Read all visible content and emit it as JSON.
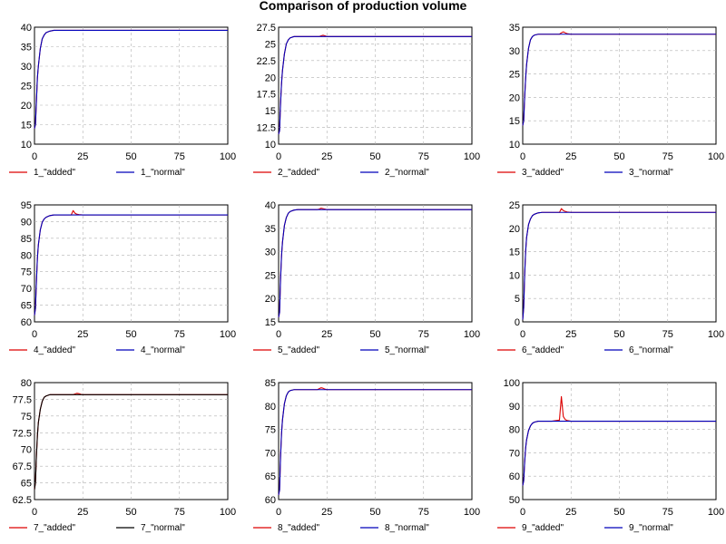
{
  "chart_data": {
    "title": "Comparison of production volume",
    "type": "line",
    "grid": true,
    "legend_placement": "below",
    "colors": {
      "added": "#dd0000",
      "normal": "#0000bb",
      "normal_alt": "#000000"
    },
    "plots": [
      {
        "xlim": [
          0,
          100
        ],
        "ylim": [
          10,
          40
        ],
        "xticks": [
          "0",
          "25",
          "50",
          "75",
          "100"
        ],
        "yticks": [
          "10",
          "15",
          "20",
          "25",
          "30",
          "35",
          "40"
        ],
        "series": [
          {
            "name": "1_\"added\"",
            "color": "#dd0000",
            "x": [
              0,
              0.5,
              1,
              1.5,
              2,
              3,
              4,
              5,
              6,
              8,
              10,
              15,
              20,
              21,
              22,
              25,
              50,
              75,
              100
            ],
            "y": [
              14,
              15,
              21,
              27,
              30,
              34.5,
              37,
              38,
              38.6,
              39,
              39.2,
              39.2,
              39.2,
              39.2,
              39.2,
              39.2,
              39.2,
              39.2,
              39.2
            ]
          },
          {
            "name": "1_\"normal\"",
            "color": "#0000bb",
            "x": [
              0,
              0.5,
              1,
              1.5,
              2,
              3,
              4,
              5,
              6,
              8,
              10,
              15,
              20,
              25,
              50,
              75,
              100
            ],
            "y": [
              14,
              15,
              21,
              27,
              30,
              34.5,
              37,
              38,
              38.6,
              39,
              39.2,
              39.2,
              39.2,
              39.2,
              39.2,
              39.2,
              39.2
            ]
          }
        ]
      },
      {
        "xlim": [
          0,
          100
        ],
        "ylim": [
          10,
          27.5
        ],
        "xticks": [
          "0",
          "25",
          "50",
          "75",
          "100"
        ],
        "yticks": [
          "10",
          "12.5",
          "15",
          "17.5",
          "20",
          "22.5",
          "25",
          "27.5"
        ],
        "series": [
          {
            "name": "2_\"added\"",
            "color": "#dd0000",
            "x": [
              0,
              0.5,
              1,
              1.5,
              2,
              3,
              4,
              5,
              6,
              8,
              10,
              15,
              20,
              21,
              22,
              23,
              24,
              25,
              50,
              75,
              100
            ],
            "y": [
              11.5,
              12,
              16,
              19,
              21,
              23.5,
              25,
              25.6,
              25.9,
              26.1,
              26.1,
              26.1,
              26.1,
              26.1,
              26.2,
              26.3,
              26.2,
              26.1,
              26.1,
              26.1,
              26.1
            ]
          },
          {
            "name": "2_\"normal\"",
            "color": "#0000bb",
            "x": [
              0,
              0.5,
              1,
              1.5,
              2,
              3,
              4,
              5,
              6,
              8,
              10,
              15,
              20,
              25,
              50,
              75,
              100
            ],
            "y": [
              11.5,
              12,
              16,
              19,
              21,
              23.5,
              25,
              25.6,
              25.9,
              26.1,
              26.1,
              26.1,
              26.1,
              26.1,
              26.1,
              26.1,
              26.1
            ]
          }
        ]
      },
      {
        "xlim": [
          0,
          100
        ],
        "ylim": [
          10,
          35
        ],
        "xticks": [
          "0",
          "25",
          "50",
          "75",
          "100"
        ],
        "yticks": [
          "10",
          "15",
          "20",
          "25",
          "30",
          "35"
        ],
        "series": [
          {
            "name": "3_\"added\"",
            "color": "#dd0000",
            "x": [
              0,
              0.5,
              1,
              1.5,
              2,
              3,
              4,
              5,
              6,
              8,
              10,
              15,
              19,
              20,
              21,
              22,
              23,
              25,
              50,
              75,
              100
            ],
            "y": [
              14,
              15,
              20,
              24,
              27,
              30.5,
              32.3,
              33,
              33.3,
              33.5,
              33.5,
              33.5,
              33.5,
              33.8,
              34,
              33.8,
              33.6,
              33.5,
              33.5,
              33.5,
              33.5
            ]
          },
          {
            "name": "3_\"normal\"",
            "color": "#0000bb",
            "x": [
              0,
              0.5,
              1,
              1.5,
              2,
              3,
              4,
              5,
              6,
              8,
              10,
              15,
              20,
              25,
              50,
              75,
              100
            ],
            "y": [
              14,
              15,
              20,
              24,
              27,
              30.5,
              32.3,
              33,
              33.3,
              33.5,
              33.5,
              33.5,
              33.5,
              33.5,
              33.5,
              33.5,
              33.5
            ]
          }
        ]
      },
      {
        "xlim": [
          0,
          100
        ],
        "ylim": [
          60,
          95
        ],
        "xticks": [
          "0",
          "25",
          "50",
          "75",
          "100"
        ],
        "yticks": [
          "60",
          "65",
          "70",
          "75",
          "80",
          "85",
          "90",
          "95"
        ],
        "series": [
          {
            "name": "4_\"added\"",
            "color": "#dd0000",
            "x": [
              0,
              0.5,
              1,
              1.5,
              2,
              3,
              4,
              5,
              6,
              8,
              10,
              15,
              19,
              20,
              21,
              22,
              23,
              25,
              50,
              75,
              100
            ],
            "y": [
              62,
              64,
              72,
              79,
              83,
              87.5,
              89.8,
              90.8,
              91.3,
              91.8,
              92,
              92,
              92,
              93.3,
              92.5,
              92.2,
              92.1,
              92,
              92,
              92,
              92
            ]
          },
          {
            "name": "4_\"normal\"",
            "color": "#0000bb",
            "x": [
              0,
              0.5,
              1,
              1.5,
              2,
              3,
              4,
              5,
              6,
              8,
              10,
              15,
              20,
              25,
              50,
              75,
              100
            ],
            "y": [
              62,
              64,
              72,
              79,
              83,
              87.5,
              89.8,
              90.8,
              91.3,
              91.8,
              92,
              92,
              92,
              92,
              92,
              92,
              92
            ]
          }
        ]
      },
      {
        "xlim": [
          0,
          100
        ],
        "ylim": [
          15,
          40
        ],
        "xticks": [
          "0",
          "25",
          "50",
          "75",
          "100"
        ],
        "yticks": [
          "15",
          "20",
          "25",
          "30",
          "35",
          "40"
        ],
        "series": [
          {
            "name": "5_\"added\"",
            "color": "#dd0000",
            "x": [
              0,
              0.5,
              1,
              1.5,
              2,
              3,
              4,
              5,
              6,
              8,
              10,
              15,
              20,
              21,
              22,
              23,
              24,
              25,
              50,
              75,
              100
            ],
            "y": [
              16,
              17,
              24,
              29,
              32,
              35.6,
              37.3,
              38.2,
              38.6,
              38.9,
              39,
              39,
              39,
              39.1,
              39.3,
              39.2,
              39.1,
              39,
              39,
              39,
              39
            ]
          },
          {
            "name": "5_\"normal\"",
            "color": "#0000bb",
            "x": [
              0,
              0.5,
              1,
              1.5,
              2,
              3,
              4,
              5,
              6,
              8,
              10,
              15,
              20,
              25,
              50,
              75,
              100
            ],
            "y": [
              16,
              17,
              24,
              29,
              32,
              35.6,
              37.3,
              38.2,
              38.6,
              38.9,
              39,
              39,
              39,
              39,
              39,
              39,
              39
            ]
          }
        ]
      },
      {
        "xlim": [
          0,
          100
        ],
        "ylim": [
          0,
          25
        ],
        "xticks": [
          "0",
          "25",
          "50",
          "75",
          "100"
        ],
        "yticks": [
          "0",
          "5",
          "10",
          "15",
          "20",
          "25"
        ],
        "series": [
          {
            "name": "6_\"added\"",
            "color": "#dd0000",
            "x": [
              0,
              0.5,
              1,
              1.5,
              2,
              3,
              4,
              5,
              6,
              8,
              10,
              15,
              19,
              20,
              21,
              22,
              23,
              25,
              50,
              75,
              100
            ],
            "y": [
              0.5,
              3,
              10,
              15,
              18,
              20.8,
              22,
              22.7,
              23,
              23.3,
              23.4,
              23.4,
              23.4,
              24.2,
              23.8,
              23.6,
              23.5,
              23.4,
              23.4,
              23.4,
              23.4
            ]
          },
          {
            "name": "6_\"normal\"",
            "color": "#0000bb",
            "x": [
              0,
              0.5,
              1,
              1.5,
              2,
              3,
              4,
              5,
              6,
              8,
              10,
              15,
              20,
              25,
              50,
              75,
              100
            ],
            "y": [
              0.5,
              3,
              10,
              15,
              18,
              20.8,
              22,
              22.7,
              23,
              23.3,
              23.4,
              23.4,
              23.4,
              23.4,
              23.4,
              23.4,
              23.4
            ]
          }
        ]
      },
      {
        "xlim": [
          0,
          100
        ],
        "ylim": [
          62.5,
          80
        ],
        "xticks": [
          "0",
          "25",
          "50",
          "75",
          "100"
        ],
        "yticks": [
          "62.5",
          "65",
          "67.5",
          "70",
          "72.5",
          "75",
          "77.5",
          "80"
        ],
        "series": [
          {
            "name": "7_\"added\"",
            "color": "#dd0000",
            "x": [
              0,
              0.5,
              1,
              1.5,
              2,
              3,
              4,
              5,
              6,
              8,
              10,
              15,
              20,
              21,
              22,
              23,
              24,
              25,
              50,
              75,
              100
            ],
            "y": [
              64,
              65,
              69,
              72,
              74,
              76,
              77.2,
              77.8,
              78,
              78.2,
              78.2,
              78.2,
              78.2,
              78.3,
              78.4,
              78.35,
              78.25,
              78.2,
              78.2,
              78.2,
              78.2
            ]
          },
          {
            "name": "7_\"normal\"",
            "color": "#000000",
            "x": [
              0,
              0.5,
              1,
              1.5,
              2,
              3,
              4,
              5,
              6,
              8,
              10,
              15,
              20,
              25,
              50,
              75,
              100
            ],
            "y": [
              64,
              65,
              69,
              72,
              74,
              76,
              77.2,
              77.8,
              78,
              78.2,
              78.2,
              78.2,
              78.2,
              78.2,
              78.2,
              78.2,
              78.2
            ]
          }
        ]
      },
      {
        "xlim": [
          0,
          100
        ],
        "ylim": [
          60,
          85
        ],
        "xticks": [
          "0",
          "25",
          "50",
          "75",
          "100"
        ],
        "yticks": [
          "60",
          "65",
          "70",
          "75",
          "80",
          "85"
        ],
        "series": [
          {
            "name": "8_\"added\"",
            "color": "#dd0000",
            "x": [
              0,
              0.5,
              1,
              1.5,
              2,
              3,
              4,
              5,
              6,
              8,
              10,
              15,
              20,
              21,
              22,
              23,
              24,
              25,
              50,
              75,
              100
            ],
            "y": [
              61,
              62,
              69,
              74,
              77,
              80.5,
              82.2,
              83,
              83.3,
              83.5,
              83.5,
              83.5,
              83.5,
              83.7,
              83.9,
              83.8,
              83.6,
              83.5,
              83.5,
              83.5,
              83.5
            ]
          },
          {
            "name": "8_\"normal\"",
            "color": "#0000bb",
            "x": [
              0,
              0.5,
              1,
              1.5,
              2,
              3,
              4,
              5,
              6,
              8,
              10,
              15,
              20,
              25,
              50,
              75,
              100
            ],
            "y": [
              61,
              62,
              69,
              74,
              77,
              80.5,
              82.2,
              83,
              83.3,
              83.5,
              83.5,
              83.5,
              83.5,
              83.5,
              83.5,
              83.5,
              83.5
            ]
          }
        ]
      },
      {
        "xlim": [
          0,
          100
        ],
        "ylim": [
          50,
          100
        ],
        "xticks": [
          "0",
          "25",
          "50",
          "75",
          "100"
        ],
        "yticks": [
          "50",
          "60",
          "70",
          "80",
          "90",
          "100"
        ],
        "series": [
          {
            "name": "9_\"added\"",
            "color": "#dd0000",
            "x": [
              0,
              0.5,
              1,
              1.5,
              2,
              3,
              4,
              5,
              6,
              8,
              10,
              15,
              19,
              20,
              21,
              22,
              23,
              25,
              50,
              75,
              100
            ],
            "y": [
              56,
              58,
              66,
              72,
              75.5,
              79.5,
              81.5,
              82.6,
              83.1,
              83.5,
              83.5,
              83.5,
              84,
              94,
              85.5,
              84.2,
              83.8,
              83.5,
              83.5,
              83.5,
              83.5
            ]
          },
          {
            "name": "9_\"normal\"",
            "color": "#0000bb",
            "x": [
              0,
              0.5,
              1,
              1.5,
              2,
              3,
              4,
              5,
              6,
              8,
              10,
              15,
              20,
              25,
              50,
              75,
              100
            ],
            "y": [
              56,
              58,
              66,
              72,
              75.5,
              79.5,
              81.5,
              82.6,
              83.1,
              83.5,
              83.5,
              83.5,
              83.5,
              83.5,
              83.5,
              83.5,
              83.5
            ]
          }
        ]
      }
    ]
  }
}
